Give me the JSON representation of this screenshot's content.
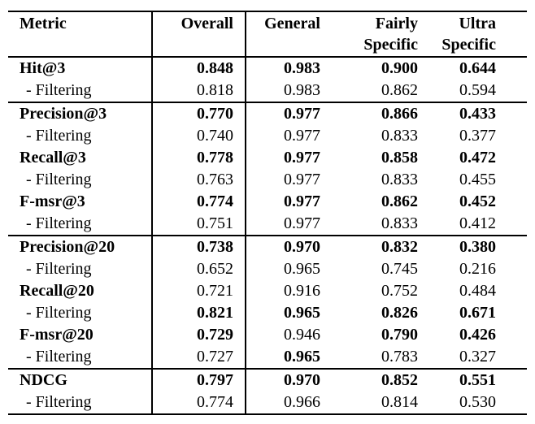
{
  "table": {
    "header": {
      "cols": [
        {
          "line1": "Metric",
          "line2": ""
        },
        {
          "line1": "Overall",
          "line2": ""
        },
        {
          "line1": "General",
          "line2": ""
        },
        {
          "line1": "Fairly",
          "line2": "Specific"
        },
        {
          "line1": "Ultra",
          "line2": "Specific"
        }
      ]
    },
    "rows": [
      {
        "metric": "Hit@3",
        "metric_bold": true,
        "indent": false,
        "rule_above": false,
        "values": [
          "0.848",
          "0.983",
          "0.900",
          "0.644"
        ],
        "bold": [
          true,
          true,
          true,
          true
        ]
      },
      {
        "metric": "- Filtering",
        "metric_bold": false,
        "indent": true,
        "rule_above": false,
        "values": [
          "0.818",
          "0.983",
          "0.862",
          "0.594"
        ],
        "bold": [
          false,
          false,
          false,
          false
        ]
      },
      {
        "metric": "Precision@3",
        "metric_bold": true,
        "indent": false,
        "rule_above": true,
        "values": [
          "0.770",
          "0.977",
          "0.866",
          "0.433"
        ],
        "bold": [
          true,
          true,
          true,
          true
        ]
      },
      {
        "metric": "- Filtering",
        "metric_bold": false,
        "indent": true,
        "rule_above": false,
        "values": [
          "0.740",
          "0.977",
          "0.833",
          "0.377"
        ],
        "bold": [
          false,
          false,
          false,
          false
        ]
      },
      {
        "metric": "Recall@3",
        "metric_bold": true,
        "indent": false,
        "rule_above": false,
        "values": [
          "0.778",
          "0.977",
          "0.858",
          "0.472"
        ],
        "bold": [
          true,
          true,
          true,
          true
        ]
      },
      {
        "metric": "- Filtering",
        "metric_bold": false,
        "indent": true,
        "rule_above": false,
        "values": [
          "0.763",
          "0.977",
          "0.833",
          "0.455"
        ],
        "bold": [
          false,
          false,
          false,
          false
        ]
      },
      {
        "metric": "F-msr@3",
        "metric_bold": true,
        "indent": false,
        "rule_above": false,
        "values": [
          "0.774",
          "0.977",
          "0.862",
          "0.452"
        ],
        "bold": [
          true,
          true,
          true,
          true
        ]
      },
      {
        "metric": "- Filtering",
        "metric_bold": false,
        "indent": true,
        "rule_above": false,
        "values": [
          "0.751",
          "0.977",
          "0.833",
          "0.412"
        ],
        "bold": [
          false,
          false,
          false,
          false
        ]
      },
      {
        "metric": "Precision@20",
        "metric_bold": true,
        "indent": false,
        "rule_above": true,
        "values": [
          "0.738",
          "0.970",
          "0.832",
          "0.380"
        ],
        "bold": [
          true,
          true,
          true,
          true
        ]
      },
      {
        "metric": "- Filtering",
        "metric_bold": false,
        "indent": true,
        "rule_above": false,
        "values": [
          "0.652",
          "0.965",
          "0.745",
          "0.216"
        ],
        "bold": [
          false,
          false,
          false,
          false
        ]
      },
      {
        "metric": "Recall@20",
        "metric_bold": true,
        "indent": false,
        "rule_above": false,
        "values": [
          "0.721",
          "0.916",
          "0.752",
          "0.484"
        ],
        "bold": [
          false,
          false,
          false,
          false
        ]
      },
      {
        "metric": "- Filtering",
        "metric_bold": false,
        "indent": true,
        "rule_above": false,
        "values": [
          "0.821",
          "0.965",
          "0.826",
          "0.671"
        ],
        "bold": [
          true,
          true,
          true,
          true
        ]
      },
      {
        "metric": "F-msr@20",
        "metric_bold": true,
        "indent": false,
        "rule_above": false,
        "values": [
          "0.729",
          "0.946",
          "0.790",
          "0.426"
        ],
        "bold": [
          true,
          false,
          true,
          true
        ]
      },
      {
        "metric": "- Filtering",
        "metric_bold": false,
        "indent": true,
        "rule_above": false,
        "values": [
          "0.727",
          "0.965",
          "0.783",
          "0.327"
        ],
        "bold": [
          false,
          true,
          false,
          false
        ]
      },
      {
        "metric": "NDCG",
        "metric_bold": true,
        "indent": false,
        "rule_above": true,
        "values": [
          "0.797",
          "0.970",
          "0.852",
          "0.551"
        ],
        "bold": [
          true,
          true,
          true,
          true
        ]
      },
      {
        "metric": "- Filtering",
        "metric_bold": false,
        "indent": true,
        "rule_above": false,
        "values": [
          "0.774",
          "0.966",
          "0.814",
          "0.530"
        ],
        "bold": [
          false,
          false,
          false,
          false
        ]
      }
    ]
  }
}
